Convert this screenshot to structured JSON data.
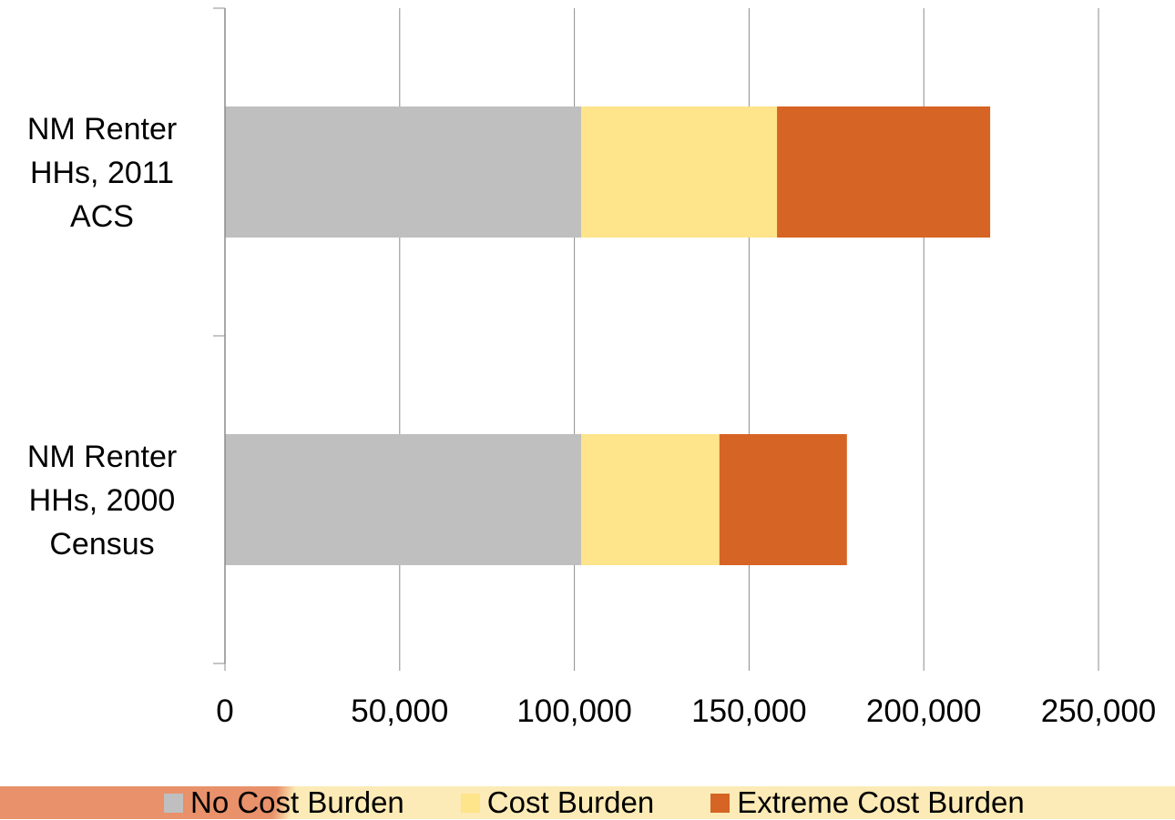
{
  "chart_data": {
    "type": "bar",
    "orientation": "horizontal",
    "stacked": true,
    "categories": [
      [
        "NM Renter",
        "HHs, 2011",
        "ACS"
      ],
      [
        "NM Renter",
        "HHs, 2000",
        "Census"
      ]
    ],
    "series": [
      {
        "name": "No Cost Burden",
        "color": "#bfbfbf",
        "values": [
          102000,
          102000
        ]
      },
      {
        "name": "Cost Burden",
        "color": "#fee48a",
        "values": [
          56000,
          39500
        ]
      },
      {
        "name": "Extreme Cost Burden",
        "color": "#d66424",
        "values": [
          61000,
          36500
        ]
      }
    ],
    "xlim": [
      0,
      250000
    ],
    "xticks": [
      0,
      50000,
      100000,
      150000,
      200000,
      250000
    ],
    "xtick_labels": [
      "0",
      "50,000",
      "100,000",
      "150,000",
      "200,000",
      "250,000"
    ],
    "grid": true,
    "legend_position": "bottom"
  }
}
